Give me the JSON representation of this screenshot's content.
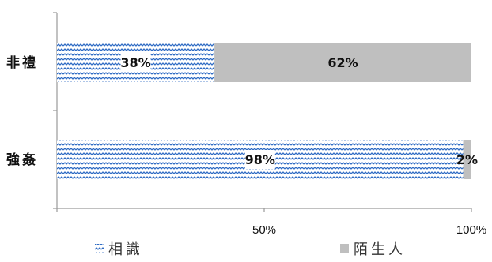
{
  "chart_data": {
    "type": "bar",
    "orientation": "horizontal",
    "stacked": "percent",
    "categories": [
      "非禮",
      "強姦"
    ],
    "series": [
      {
        "name": "相識",
        "values": [
          38,
          98
        ],
        "labels": [
          "38%",
          "98%"
        ],
        "pattern": "wave",
        "color": "#2e6bc4"
      },
      {
        "name": "陌生人",
        "values": [
          62,
          2
        ],
        "labels": [
          "62%",
          "2%"
        ],
        "pattern": "solid",
        "color": "#bfbfbf"
      }
    ],
    "xlim": [
      0,
      100
    ],
    "x_ticks": [
      {
        "value": 0,
        "label": ""
      },
      {
        "value": 50,
        "label": "50%"
      },
      {
        "value": 100,
        "label": "100%"
      }
    ],
    "grid": false,
    "legend_position": "bottom"
  }
}
